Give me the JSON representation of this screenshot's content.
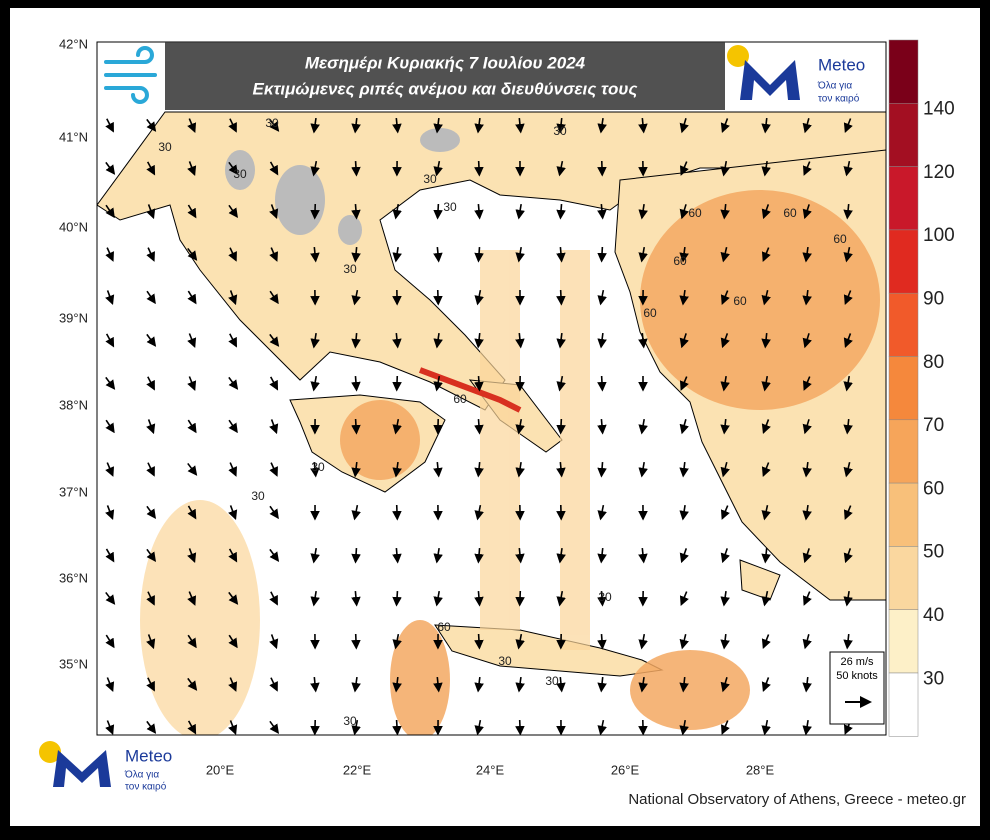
{
  "header": {
    "title": "Μεσημέρι Κυριακής 7 Ιουλίου 2024",
    "subtitle": "Εκτιμώμενες ριπές ανέμου και διευθύνσεις τους"
  },
  "logo": {
    "name": "Meteo",
    "tagline": [
      "Όλα για",
      "τον καιρό"
    ]
  },
  "map": {
    "lat_labels": [
      "42°N",
      "41°N",
      "40°N",
      "39°N",
      "38°N",
      "37°N",
      "36°N",
      "35°N"
    ],
    "lon_labels": [
      "20°E",
      "22°E",
      "24°E",
      "26°E",
      "28°E"
    ],
    "contour_labels": [
      "30",
      "30",
      "30",
      "30",
      "30",
      "30",
      "30",
      "60",
      "60",
      "60",
      "60",
      "60",
      "60",
      "60",
      "30",
      "30",
      "30",
      "30",
      "30",
      "60",
      "30"
    ]
  },
  "colorbar": {
    "ticks": [
      "140",
      "120",
      "100",
      "90",
      "80",
      "70",
      "60",
      "50",
      "40",
      "30"
    ]
  },
  "reference_vector": {
    "speed": "26 m/s",
    "knots": "50 knots"
  },
  "footer": "National Observatory of Athens, Greece - meteo.gr"
}
